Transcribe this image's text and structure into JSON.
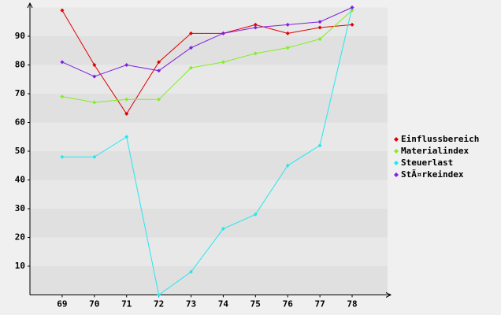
{
  "chart_data": {
    "type": "line",
    "x": [
      69,
      70,
      71,
      72,
      73,
      74,
      75,
      76,
      77,
      78
    ],
    "xlim": [
      68,
      79.1
    ],
    "xticks": [
      69,
      70,
      71,
      72,
      73,
      74,
      75,
      76,
      77,
      78
    ],
    "ylim": [
      0,
      100
    ],
    "yticks": [
      10,
      20,
      30,
      40,
      50,
      60,
      70,
      80,
      90
    ],
    "grid": true,
    "legend": "right",
    "series": [
      {
        "name": "Einflussbereich",
        "color": "#e00000",
        "values": [
          99,
          80,
          63,
          81,
          91,
          91,
          94,
          91,
          93,
          94
        ]
      },
      {
        "name": "Materialindex",
        "color": "#80f020",
        "values": [
          69,
          67,
          68,
          68,
          79,
          81,
          84,
          86,
          89,
          99
        ]
      },
      {
        "name": "Steuerlast",
        "color": "#20e8f0",
        "values": [
          48,
          48,
          55,
          0,
          8,
          23,
          28,
          45,
          52,
          100
        ]
      },
      {
        "name": "StÃ¤rkeindex",
        "color": "#8020e0",
        "values": [
          81,
          76,
          80,
          78,
          86,
          91,
          93,
          94,
          95,
          100
        ]
      }
    ]
  }
}
